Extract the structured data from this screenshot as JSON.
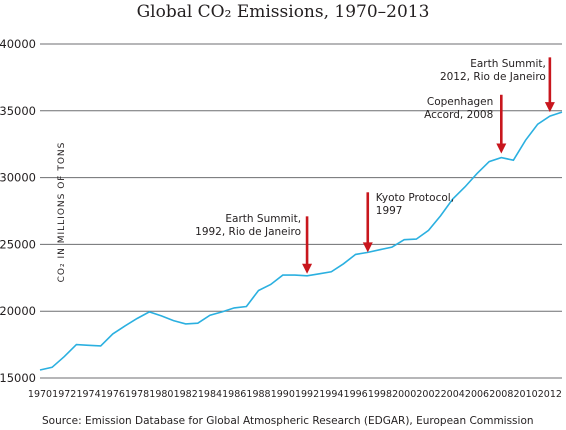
{
  "chart_data": {
    "type": "line",
    "title": "Global CO₂ Emissions, 1970–2013",
    "ylabel": "CO₂ IN MILLIONS OF TONS",
    "xlabel": "",
    "ylim": [
      15000,
      40000
    ],
    "yticks": [
      15000,
      20000,
      25000,
      30000,
      35000,
      40000
    ],
    "xticks": [
      "1970",
      "1972",
      "1974",
      "1976",
      "1978",
      "1980",
      "1982",
      "1984",
      "1986",
      "1988",
      "1990",
      "1992",
      "1994",
      "1996",
      "1998",
      "2000",
      "2002",
      "2004",
      "2006",
      "2008",
      "2010",
      "2012"
    ],
    "grid": true,
    "series": [
      {
        "color": "#2bb0e0",
        "x": [
          1970,
          1971,
          1972,
          1973,
          1974,
          1975,
          1976,
          1977,
          1978,
          1979,
          1980,
          1981,
          1982,
          1983,
          1984,
          1985,
          1986,
          1987,
          1988,
          1989,
          1990,
          1991,
          1992,
          1993,
          1994,
          1995,
          1996,
          1997,
          1998,
          1999,
          2000,
          2001,
          2002,
          2003,
          2004,
          2005,
          2006,
          2007,
          2008,
          2009,
          2010,
          2011,
          2012,
          2013
        ],
        "y": [
          15600,
          15800,
          16600,
          17500,
          17450,
          17400,
          18300,
          18900,
          19450,
          19950,
          19650,
          19300,
          19050,
          19100,
          19700,
          19950,
          20250,
          20350,
          21550,
          22000,
          22700,
          22700,
          22650,
          22800,
          22950,
          23550,
          24250,
          24400,
          24600,
          24800,
          25350,
          25400,
          26050,
          27150,
          28400,
          29300,
          30300,
          31200,
          31500,
          31300,
          32800,
          34000,
          34600,
          34900
        ]
      }
    ],
    "annotations": [
      {
        "lines": [
          "Earth Summit,",
          "1992, Rio de Janeiro"
        ],
        "year": 1992,
        "arrow_from": 27100,
        "arrow_to": 22800
      },
      {
        "lines": [
          "Kyoto Protocol,",
          "1997"
        ],
        "year": 1997,
        "arrow_from": 28900,
        "arrow_to": 24400
      },
      {
        "lines": [
          "Copenhagen",
          "Accord, 2008"
        ],
        "year": 2008,
        "arrow_from": 36200,
        "arrow_to": 31800
      },
      {
        "lines": [
          "Earth Summit,",
          "2012, Rio de Janeiro"
        ],
        "year": 2012,
        "arrow_from": 39000,
        "arrow_to": 34900
      }
    ],
    "arrow_color": "#c8161d",
    "source": "Source: Emission Database for Global Atmospheric Research (EDGAR), European Commission"
  }
}
